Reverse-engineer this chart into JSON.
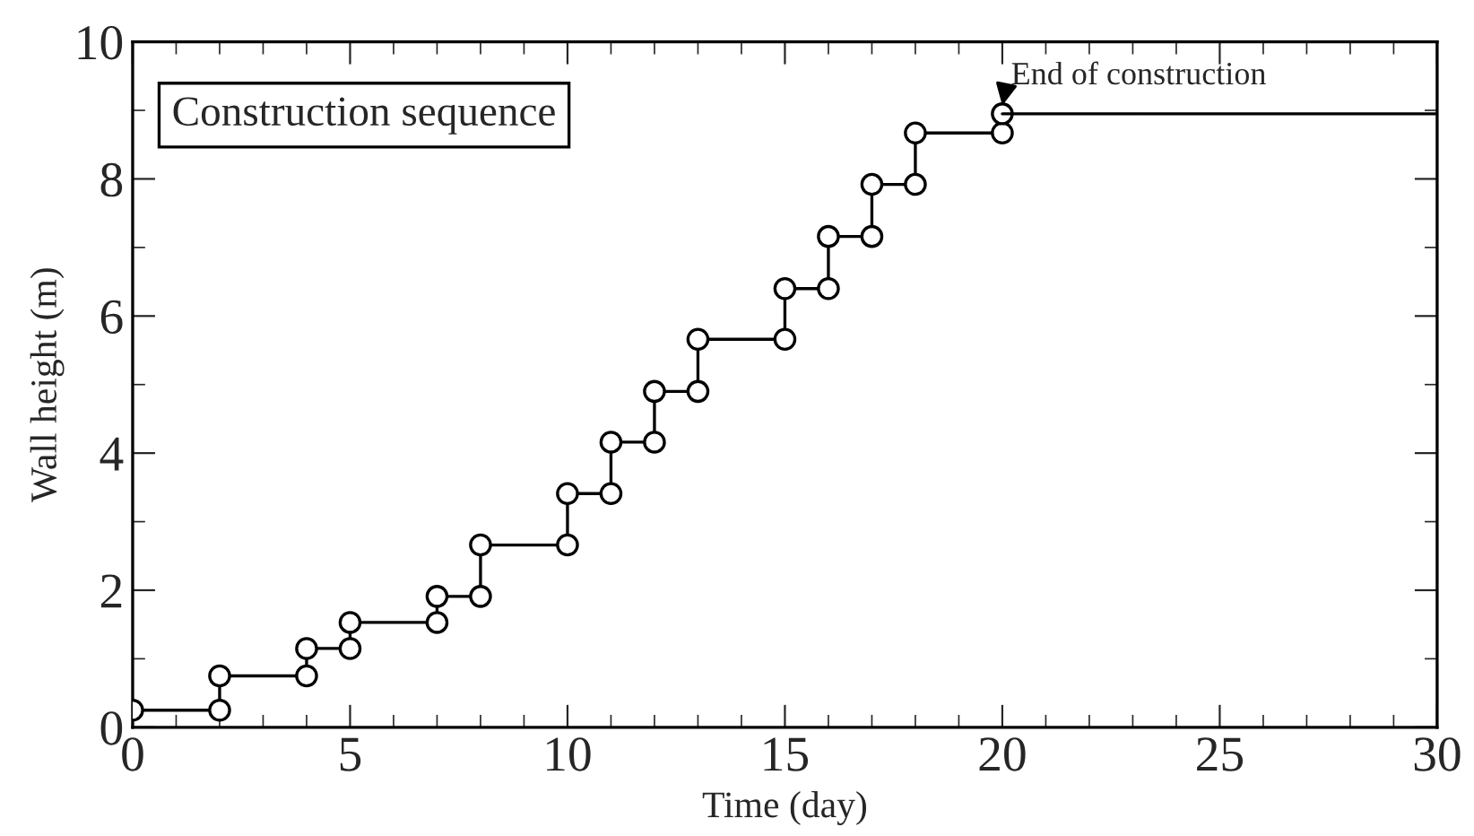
{
  "chart_data": {
    "type": "line",
    "xlabel": "Time (day)",
    "ylabel": "Wall height (m)",
    "xlim": [
      0,
      30
    ],
    "xticks": [
      0,
      5,
      10,
      15,
      20,
      25,
      30
    ],
    "ylim": [
      0,
      10
    ],
    "yticks": [
      0,
      2,
      4,
      6,
      8,
      10
    ],
    "grid": false,
    "legend": false,
    "series": [
      {
        "color": "#000000",
        "marker": "circle",
        "line_style": "solid",
        "x": [
          0,
          2,
          2,
          4,
          4,
          5,
          5,
          7,
          7,
          8,
          8,
          10,
          10,
          11,
          11,
          12,
          12,
          13,
          13,
          15,
          15,
          16,
          16,
          17,
          17,
          18,
          18,
          20,
          20
        ],
        "values": [
          0.25,
          0.25,
          0.75,
          0.75,
          1.15,
          1.15,
          1.53,
          1.53,
          1.91,
          1.91,
          2.66,
          2.66,
          3.41,
          3.41,
          4.16,
          4.16,
          4.9,
          4.9,
          5.66,
          5.66,
          6.4,
          6.4,
          7.16,
          7.16,
          7.92,
          7.92,
          8.67,
          8.67,
          8.95
        ]
      },
      {
        "color": "#000000",
        "marker": "none",
        "line_style": "solid",
        "x": [
          20,
          30
        ],
        "values": [
          8.95,
          8.95
        ]
      }
    ],
    "annotations": [
      "Construction sequence",
      {
        "text": "End of construction",
        "x": 20,
        "y": 8.95
      }
    ]
  }
}
